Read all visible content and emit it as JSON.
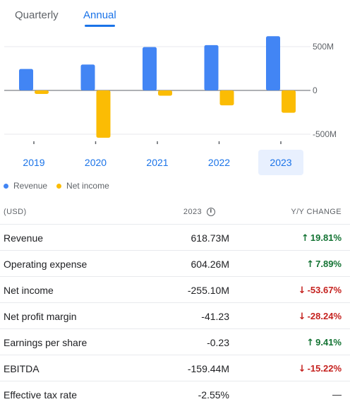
{
  "tabs": {
    "quarterly": "Quarterly",
    "annual": "Annual",
    "selected": "Annual"
  },
  "colors": {
    "revenue": "#4285f4",
    "net_income": "#fbbc04",
    "accent": "#1a73e8",
    "positive": "#137333",
    "negative": "#c5221f"
  },
  "chart_data": {
    "type": "bar",
    "categories": [
      "2019",
      "2020",
      "2021",
      "2022",
      "2023"
    ],
    "selected_category": "2023",
    "series": [
      {
        "name": "Revenue",
        "values": [
          245,
          295,
          495,
          517,
          618.73
        ]
      },
      {
        "name": "Net income",
        "values": [
          -40,
          -540,
          -60,
          -170,
          -255.1
        ]
      }
    ],
    "y_ticks": [
      {
        "value": 500,
        "label": "500M"
      },
      {
        "value": 0,
        "label": "0"
      },
      {
        "value": -500,
        "label": "-500M"
      }
    ],
    "ylim": [
      -540,
      620
    ],
    "legend_position": "bottom-left",
    "grid": true
  },
  "legend": [
    {
      "label": "Revenue",
      "color": "#4285f4"
    },
    {
      "label": "Net income",
      "color": "#fbbc04"
    }
  ],
  "table": {
    "headers": {
      "currency": "(USD)",
      "year": "2023",
      "change": "Y/Y CHANGE"
    },
    "rows": [
      {
        "name": "Revenue",
        "value": "618.73M",
        "change": "19.81%",
        "dir": "up"
      },
      {
        "name": "Operating expense",
        "value": "604.26M",
        "change": "7.89%",
        "dir": "up"
      },
      {
        "name": "Net income",
        "value": "-255.10M",
        "change": "-53.67%",
        "dir": "down"
      },
      {
        "name": "Net profit margin",
        "value": "-41.23",
        "change": "-28.24%",
        "dir": "down"
      },
      {
        "name": "Earnings per share",
        "value": "-0.23",
        "change": "9.41%",
        "dir": "up"
      },
      {
        "name": "EBITDA",
        "value": "-159.44M",
        "change": "-15.22%",
        "dir": "down"
      },
      {
        "name": "Effective tax rate",
        "value": "-2.55%",
        "change": "—",
        "dir": "none"
      }
    ]
  }
}
